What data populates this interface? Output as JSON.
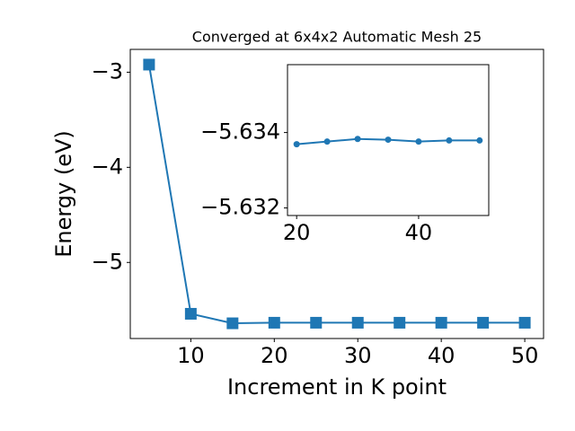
{
  "chart_data": [
    {
      "type": "line",
      "title": "Converged at 6x4x2 Automatic Mesh 25",
      "x_label": "Increment in K point",
      "y_label": "Energy (eV)",
      "x": [
        5,
        10,
        15,
        20,
        25,
        30,
        35,
        40,
        45,
        50
      ],
      "series": [
        {
          "color": "#1f77b4",
          "marker": "square",
          "values": [
            -2.92,
            -5.54,
            -5.64,
            -5.634,
            -5.634,
            -5.634,
            -5.634,
            -5.634,
            -5.634,
            -5.634
          ]
        }
      ],
      "xlim": [
        2.75,
        52.25
      ],
      "ylim": [
        -5.8,
        -2.76
      ],
      "xticks": [
        10,
        20,
        30,
        40,
        50
      ],
      "yticks": [
        {
          "value": -3,
          "label": "−3"
        },
        {
          "value": -4,
          "label": "−4"
        },
        {
          "value": -5,
          "label": "−5"
        }
      ]
    },
    {
      "type": "line",
      "x": [
        20,
        25,
        30,
        35,
        40,
        45,
        50
      ],
      "series": [
        {
          "color": "#1f77b4",
          "marker": "circle",
          "values": [
            -5.63369,
            -5.63376,
            -5.63383,
            -5.63381,
            -5.63376,
            -5.63379,
            -5.63379
          ]
        }
      ],
      "xlim": [
        18.5,
        51.5
      ],
      "ylim": [
        -5.6318,
        -5.6358
      ],
      "xticks": [
        20,
        40
      ],
      "yticks": [
        {
          "value": -5.634,
          "label": "−5.634"
        },
        {
          "value": -5.632,
          "label": "−5.632"
        }
      ]
    }
  ]
}
